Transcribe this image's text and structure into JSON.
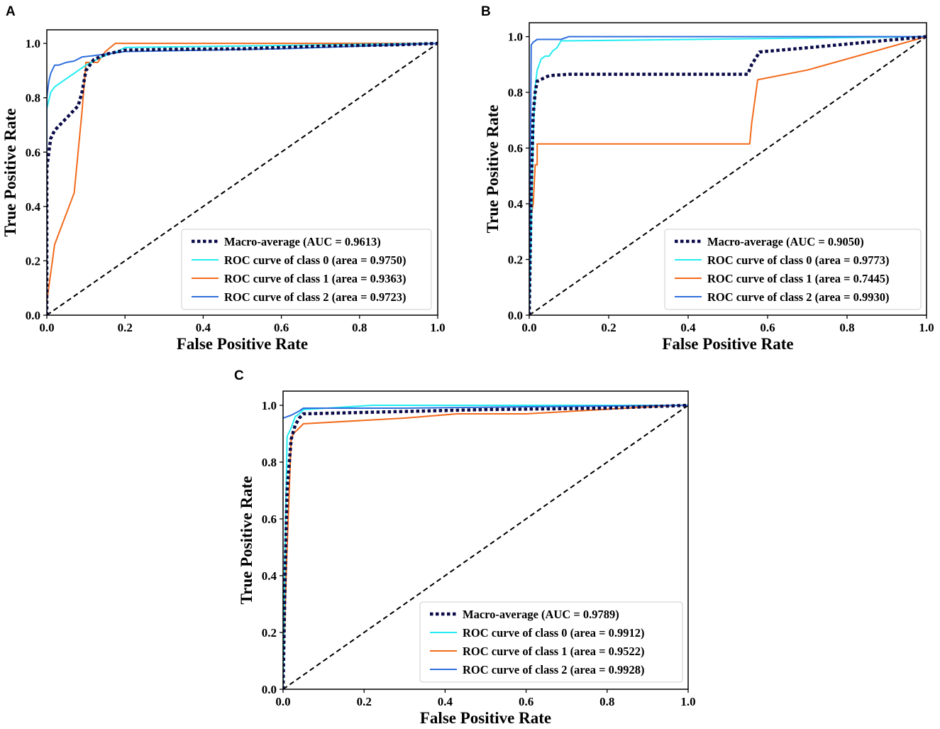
{
  "colors": {
    "macro": "#0b0b4a",
    "class0": "#22ecf2",
    "class1": "#f26a1b",
    "class2": "#2f6fdc",
    "diagonal": "#000000"
  },
  "chart_data": [
    {
      "panel_label": "A",
      "type": "line",
      "title": "",
      "xlabel": "False Positive Rate",
      "ylabel": "True Positive Rate",
      "xlim": [
        0.0,
        1.0
      ],
      "ylim": [
        0.0,
        1.05
      ],
      "x_ticks": [
        "0.0",
        "0.2",
        "0.4",
        "0.6",
        "0.8",
        "1.0"
      ],
      "y_ticks": [
        "0.0",
        "0.2",
        "0.4",
        "0.6",
        "0.8",
        "1.0"
      ],
      "legend_position": "lower-right",
      "series": [
        {
          "name": "Macro-average (AUC = 0.9613)",
          "style": "macro",
          "x": [
            0,
            0,
            0.005,
            0.01,
            0.02,
            0.04,
            0.06,
            0.08,
            0.09,
            0.1,
            0.12,
            0.15,
            0.2,
            0.3,
            0.5,
            0.7,
            0.9,
            1.0
          ],
          "y": [
            0,
            0.54,
            0.6,
            0.65,
            0.68,
            0.71,
            0.74,
            0.77,
            0.82,
            0.9,
            0.94,
            0.96,
            0.975,
            0.978,
            0.98,
            0.99,
            0.995,
            1.0
          ]
        },
        {
          "name": "ROC curve of class 0 (area = 0.9750)",
          "style": "class0",
          "x": [
            0,
            0,
            0.01,
            0.02,
            0.04,
            0.06,
            0.08,
            0.1,
            0.14,
            0.18,
            0.2,
            1.0
          ],
          "y": [
            0,
            0.76,
            0.82,
            0.84,
            0.86,
            0.88,
            0.9,
            0.92,
            0.95,
            0.97,
            0.985,
            1.0
          ]
        },
        {
          "name": "ROC curve of class 1 (area = 0.9363)",
          "style": "class1",
          "x": [
            0,
            0.02,
            0.07,
            0.09,
            0.1,
            0.12,
            0.13,
            0.15,
            0.175,
            1.0
          ],
          "y": [
            0.05,
            0.26,
            0.45,
            0.75,
            0.93,
            0.93,
            0.93,
            0.97,
            1.0,
            1.0
          ]
        },
        {
          "name": "ROC curve of class 2 (area = 0.9723)",
          "style": "class2",
          "x": [
            0,
            0,
            0.005,
            0.01,
            0.02,
            0.03,
            0.05,
            0.07,
            0.09,
            0.12,
            0.2,
            0.4,
            0.6,
            0.8,
            1.0
          ],
          "y": [
            0,
            0.8,
            0.86,
            0.89,
            0.92,
            0.92,
            0.93,
            0.935,
            0.95,
            0.955,
            0.97,
            0.975,
            0.98,
            0.99,
            1.0
          ]
        },
        {
          "name": "",
          "style": "diagonal",
          "x": [
            0,
            1
          ],
          "y": [
            0,
            1
          ]
        }
      ]
    },
    {
      "panel_label": "B",
      "type": "line",
      "title": "",
      "xlabel": "False Positive Rate",
      "ylabel": "True Positive Rate",
      "xlim": [
        0.0,
        1.0
      ],
      "ylim": [
        0.0,
        1.05
      ],
      "x_ticks": [
        "0.0",
        "0.2",
        "0.4",
        "0.6",
        "0.8",
        "1.0"
      ],
      "y_ticks": [
        "0.0",
        "0.2",
        "0.4",
        "0.6",
        "0.8",
        "1.0"
      ],
      "legend_position": "lower-right",
      "series": [
        {
          "name": "Macro-average (AUC = 0.9050)",
          "style": "macro",
          "x": [
            0,
            0.005,
            0.01,
            0.015,
            0.02,
            0.05,
            0.1,
            0.3,
            0.55,
            0.56,
            0.58,
            0.7,
            1.0
          ],
          "y": [
            0,
            0.45,
            0.72,
            0.8,
            0.84,
            0.86,
            0.865,
            0.865,
            0.865,
            0.9,
            0.945,
            0.96,
            1.0
          ]
        },
        {
          "name": "ROC curve of class 0 (area = 0.9773)",
          "style": "class0",
          "x": [
            0,
            0.005,
            0.01,
            0.015,
            0.02,
            0.03,
            0.04,
            0.05,
            0.06,
            0.07,
            0.08,
            0.1,
            1.0
          ],
          "y": [
            0,
            0.3,
            0.65,
            0.82,
            0.88,
            0.92,
            0.93,
            0.93,
            0.95,
            0.96,
            0.985,
            0.985,
            1.0
          ]
        },
        {
          "name": "ROC curve of class 1 (area = 0.7445)",
          "style": "class1",
          "x": [
            0,
            0.005,
            0.01,
            0.015,
            0.02,
            0.02,
            0.3,
            0.555,
            0.56,
            0.575,
            0.7,
            1.0
          ],
          "y": [
            0.32,
            0.36,
            0.4,
            0.54,
            0.54,
            0.615,
            0.615,
            0.615,
            0.69,
            0.845,
            0.88,
            1.0
          ]
        },
        {
          "name": "ROC curve of class 2 (area = 0.9930)",
          "style": "class2",
          "x": [
            0,
            0.005,
            0.01,
            0.02,
            0.08,
            0.1,
            0.3,
            1.0
          ],
          "y": [
            0,
            0.97,
            0.98,
            0.99,
            0.99,
            1.0,
            1.0,
            1.0
          ]
        },
        {
          "name": "",
          "style": "diagonal",
          "x": [
            0,
            1
          ],
          "y": [
            0,
            1
          ]
        }
      ]
    },
    {
      "panel_label": "C",
      "type": "line",
      "title": "",
      "xlabel": "False Positive Rate",
      "ylabel": "True Positive Rate",
      "xlim": [
        0.0,
        1.0
      ],
      "ylim": [
        0.0,
        1.05
      ],
      "x_ticks": [
        "0.0",
        "0.2",
        "0.4",
        "0.6",
        "0.8",
        "1.0"
      ],
      "y_ticks": [
        "0.0",
        "0.2",
        "0.4",
        "0.6",
        "0.8",
        "1.0"
      ],
      "legend_position": "lower-right",
      "series": [
        {
          "name": "Macro-average (AUC = 0.9789)",
          "style": "macro",
          "x": [
            0,
            0.005,
            0.01,
            0.02,
            0.03,
            0.04,
            0.05,
            0.2,
            0.5,
            0.8,
            1.0
          ],
          "y": [
            0,
            0.4,
            0.7,
            0.88,
            0.93,
            0.955,
            0.97,
            0.975,
            0.985,
            0.99,
            1.0
          ]
        },
        {
          "name": "ROC curve of class 0 (area = 0.9912)",
          "style": "class0",
          "x": [
            0,
            0.005,
            0.01,
            0.02,
            0.03,
            0.04,
            0.05,
            0.22,
            1.0
          ],
          "y": [
            0,
            0.5,
            0.89,
            0.92,
            0.96,
            0.97,
            0.985,
            1.0,
            1.0
          ]
        },
        {
          "name": "ROC curve of class 1 (area = 0.9522)",
          "style": "class1",
          "x": [
            0,
            0.01,
            0.02,
            0.025,
            0.04,
            0.05,
            0.3,
            0.43,
            0.6,
            0.97,
            1.0
          ],
          "y": [
            0.07,
            0.5,
            0.88,
            0.9,
            0.92,
            0.935,
            0.955,
            0.97,
            0.97,
            1.0,
            1.0
          ]
        },
        {
          "name": "ROC curve of class 2 (area = 0.9928)",
          "style": "class2",
          "x": [
            0,
            0.02,
            0.04,
            0.05,
            0.3,
            0.6,
            1.0
          ],
          "y": [
            0.955,
            0.965,
            0.98,
            0.99,
            0.99,
            0.995,
            1.0
          ]
        },
        {
          "name": "",
          "style": "diagonal",
          "x": [
            0,
            1
          ],
          "y": [
            0,
            1
          ]
        }
      ]
    }
  ]
}
